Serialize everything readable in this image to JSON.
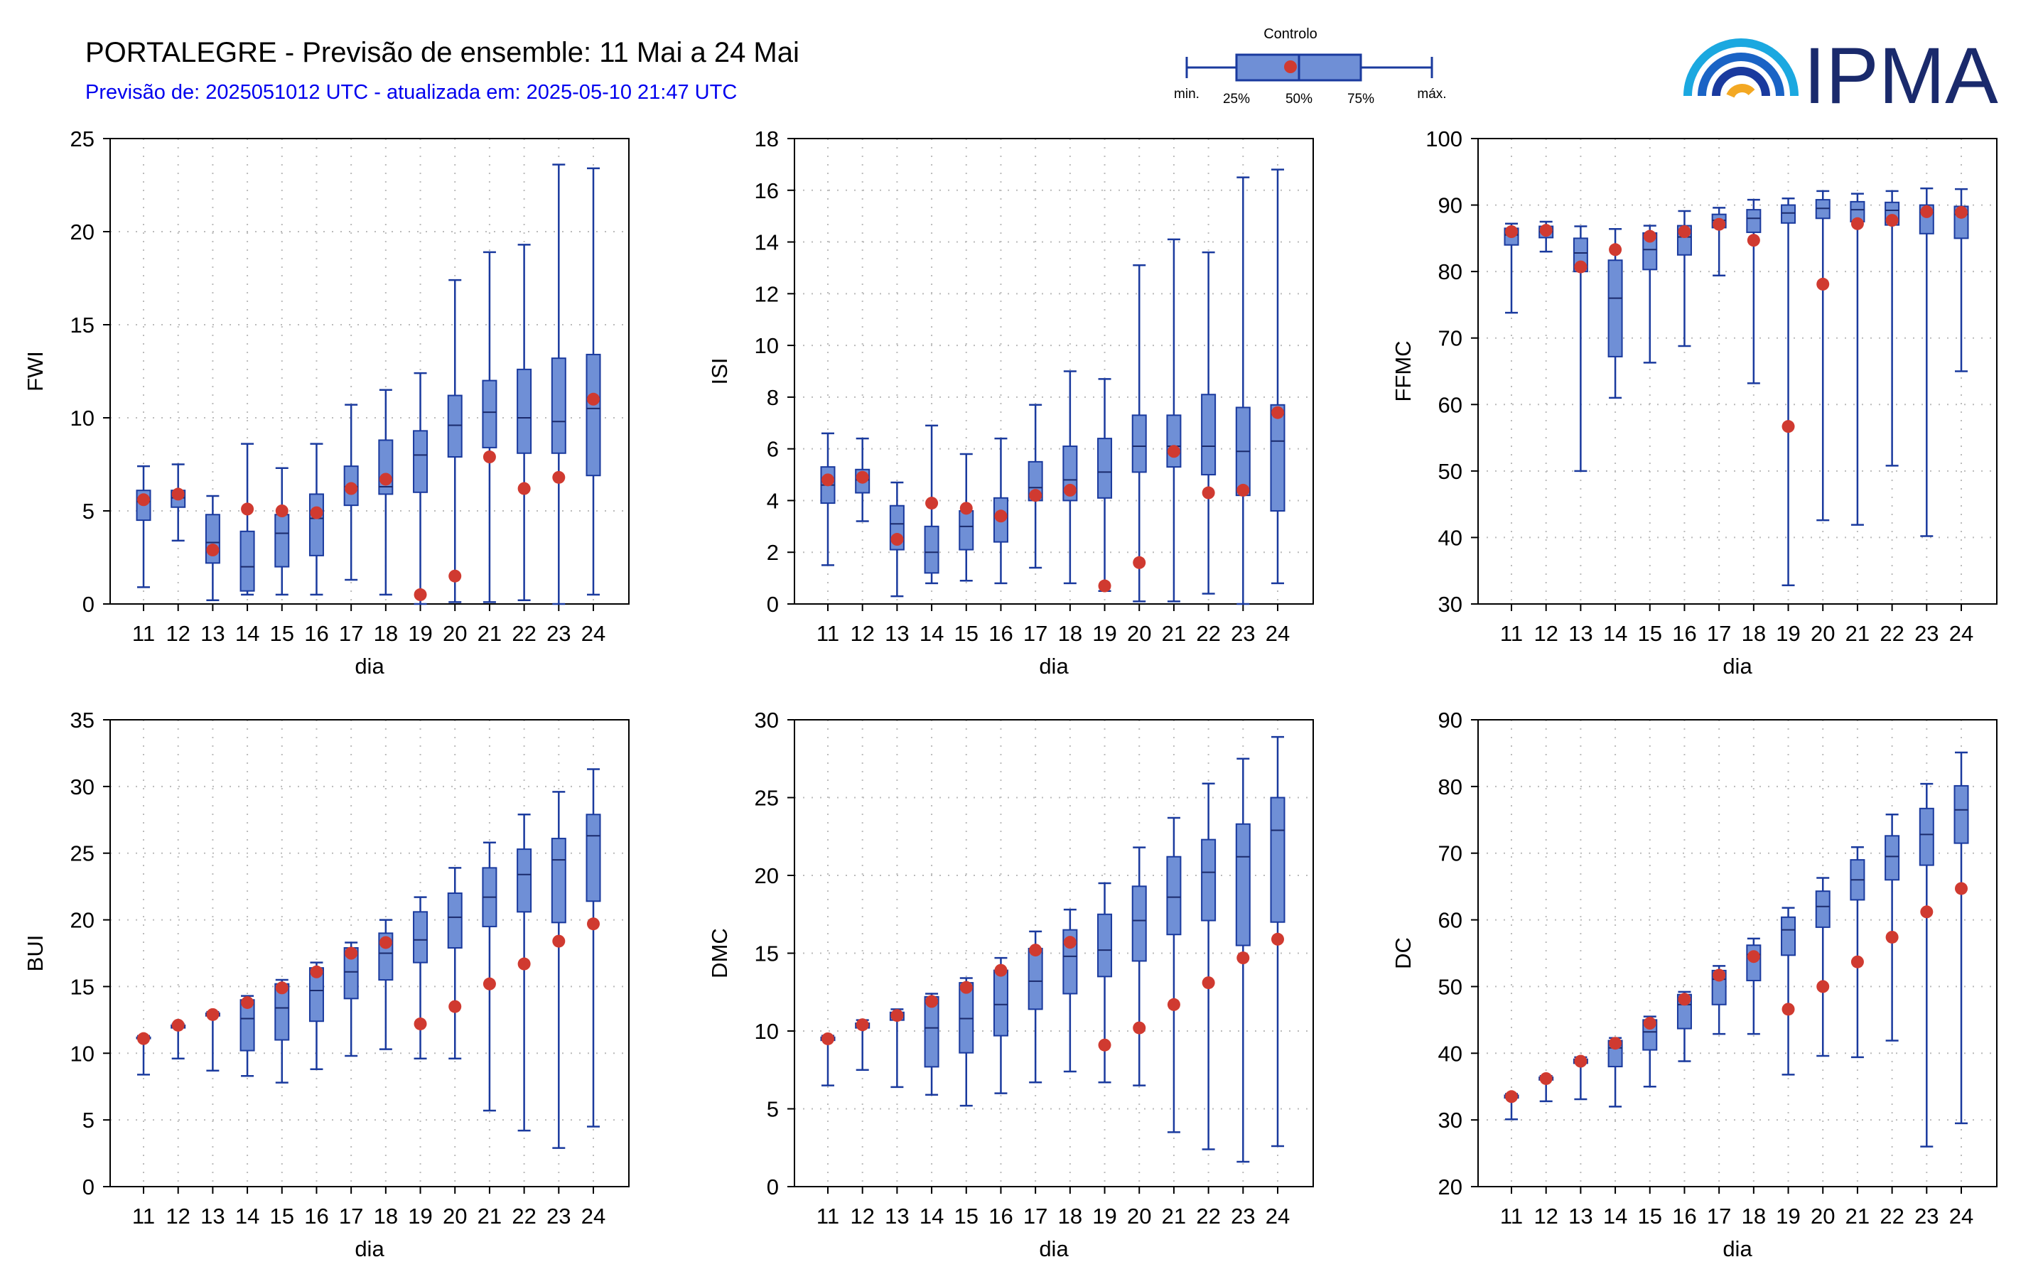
{
  "header": {
    "title": "PORTALEGRE - Previsão de ensemble: 11 Mai a 24 Mai",
    "subtitle": "Previsão de: 2025051012 UTC - atualizada em: 2025-05-10 21:47 UTC"
  },
  "legend": {
    "control": "Controlo",
    "min": "min.",
    "p25": "25%",
    "p50": "50%",
    "p75": "75%",
    "max": "máx."
  },
  "logo": {
    "text": "IPMA"
  },
  "colors": {
    "box": "#6f8fd6",
    "whisker": "#1a3a9e",
    "control": "#d03a30",
    "grid": "#bbbbbb",
    "title_sub": "#0000ee"
  },
  "chart_data": [
    {
      "type": "box",
      "ylabel": "FWI",
      "xlabel": "dia",
      "categories": [
        "11",
        "12",
        "13",
        "14",
        "15",
        "16",
        "17",
        "18",
        "19",
        "20",
        "21",
        "22",
        "23",
        "24"
      ],
      "ylim": [
        0,
        25
      ],
      "yticks": [
        0,
        5,
        10,
        15,
        20,
        25
      ],
      "grid": true,
      "series": [
        {
          "name": "min",
          "values": [
            0.9,
            3.4,
            0.2,
            0.5,
            0.5,
            0.5,
            1.3,
            0.5,
            0.0,
            0.1,
            0.1,
            0.2,
            0.0,
            0.5
          ]
        },
        {
          "name": "p25",
          "values": [
            4.5,
            5.2,
            2.2,
            0.7,
            2.0,
            2.6,
            5.3,
            5.9,
            6.0,
            7.9,
            8.4,
            8.1,
            8.1,
            6.9
          ]
        },
        {
          "name": "p50",
          "values": [
            5.5,
            5.7,
            3.3,
            2.0,
            3.8,
            4.6,
            6.3,
            6.3,
            8.0,
            9.6,
            10.3,
            10.0,
            9.8,
            10.5
          ]
        },
        {
          "name": "p75",
          "values": [
            6.1,
            6.1,
            4.8,
            3.9,
            4.8,
            5.9,
            7.4,
            8.8,
            9.3,
            11.2,
            12.0,
            12.6,
            13.2,
            13.4
          ]
        },
        {
          "name": "max",
          "values": [
            7.4,
            7.5,
            5.8,
            8.6,
            7.3,
            8.6,
            10.7,
            11.5,
            12.4,
            17.4,
            18.9,
            19.3,
            23.6,
            23.4
          ]
        },
        {
          "name": "Controlo",
          "values": [
            5.6,
            5.9,
            2.9,
            5.1,
            5.0,
            4.9,
            6.2,
            6.7,
            0.5,
            1.5,
            7.9,
            6.2,
            6.8,
            11.0
          ]
        }
      ]
    },
    {
      "type": "box",
      "ylabel": "ISI",
      "xlabel": "dia",
      "categories": [
        "11",
        "12",
        "13",
        "14",
        "15",
        "16",
        "17",
        "18",
        "19",
        "20",
        "21",
        "22",
        "23",
        "24"
      ],
      "ylim": [
        0,
        18
      ],
      "yticks": [
        0,
        2,
        4,
        6,
        8,
        10,
        12,
        14,
        16,
        18
      ],
      "grid": true,
      "series": [
        {
          "name": "min",
          "values": [
            1.5,
            3.2,
            0.3,
            0.8,
            0.9,
            0.8,
            1.4,
            0.8,
            0.5,
            0.1,
            0.1,
            0.4,
            0.0,
            0.8
          ]
        },
        {
          "name": "p25",
          "values": [
            3.9,
            4.3,
            2.1,
            1.2,
            2.1,
            2.4,
            4.0,
            4.0,
            4.1,
            5.1,
            5.3,
            5.0,
            4.2,
            3.6
          ]
        },
        {
          "name": "p50",
          "values": [
            4.6,
            4.8,
            3.1,
            2.0,
            3.0,
            3.4,
            4.5,
            4.8,
            5.1,
            6.1,
            6.1,
            6.1,
            5.9,
            6.3
          ]
        },
        {
          "name": "p75",
          "values": [
            5.3,
            5.2,
            3.8,
            3.0,
            3.6,
            4.1,
            5.5,
            6.1,
            6.4,
            7.3,
            7.3,
            8.1,
            7.6,
            7.7
          ]
        },
        {
          "name": "max",
          "values": [
            6.6,
            6.4,
            4.7,
            6.9,
            5.8,
            6.4,
            7.7,
            9.0,
            8.7,
            13.1,
            14.1,
            13.6,
            16.5,
            16.8
          ]
        },
        {
          "name": "Controlo",
          "values": [
            4.8,
            4.9,
            2.5,
            3.9,
            3.7,
            3.4,
            4.2,
            4.4,
            0.7,
            1.6,
            5.9,
            4.3,
            4.4,
            7.4
          ]
        }
      ]
    },
    {
      "type": "box",
      "ylabel": "FFMC",
      "xlabel": "dia",
      "categories": [
        "11",
        "12",
        "13",
        "14",
        "15",
        "16",
        "17",
        "18",
        "19",
        "20",
        "21",
        "22",
        "23",
        "24"
      ],
      "ylim": [
        30,
        100
      ],
      "yticks": [
        30,
        40,
        50,
        60,
        70,
        80,
        90,
        100
      ],
      "grid": true,
      "series": [
        {
          "name": "min",
          "values": [
            73.8,
            83.0,
            50.0,
            61.0,
            66.3,
            68.8,
            79.4,
            63.2,
            32.8,
            42.6,
            41.9,
            50.8,
            40.2,
            65.0
          ]
        },
        {
          "name": "p25",
          "values": [
            84.0,
            85.1,
            80.0,
            67.2,
            80.3,
            82.5,
            86.6,
            85.9,
            87.3,
            88.0,
            87.5,
            87.0,
            85.7,
            85.0
          ]
        },
        {
          "name": "p50",
          "values": [
            85.5,
            86.0,
            82.8,
            76.0,
            83.3,
            85.2,
            87.7,
            88.0,
            88.8,
            89.5,
            89.3,
            89.2,
            88.9,
            88.6
          ]
        },
        {
          "name": "p75",
          "values": [
            86.5,
            86.8,
            85.0,
            81.7,
            85.8,
            86.9,
            88.6,
            89.3,
            90.0,
            90.8,
            90.5,
            90.4,
            90.0,
            89.8
          ]
        },
        {
          "name": "max",
          "values": [
            87.2,
            87.5,
            86.8,
            86.4,
            86.9,
            89.1,
            89.6,
            90.8,
            91.0,
            92.1,
            91.7,
            92.1,
            92.5,
            92.4
          ]
        },
        {
          "name": "Controlo",
          "values": [
            86.0,
            86.2,
            80.7,
            83.3,
            85.3,
            86.0,
            87.1,
            84.7,
            56.7,
            78.1,
            87.2,
            87.7,
            89.0,
            88.9
          ]
        }
      ]
    },
    {
      "type": "box",
      "ylabel": "BUI",
      "xlabel": "dia",
      "categories": [
        "11",
        "12",
        "13",
        "14",
        "15",
        "16",
        "17",
        "18",
        "19",
        "20",
        "21",
        "22",
        "23",
        "24"
      ],
      "ylim": [
        0,
        35
      ],
      "yticks": [
        0,
        5,
        10,
        15,
        20,
        25,
        30,
        35
      ],
      "grid": true,
      "series": [
        {
          "name": "min",
          "values": [
            8.4,
            9.6,
            8.7,
            8.3,
            7.8,
            8.8,
            9.8,
            10.3,
            9.6,
            9.6,
            5.7,
            4.2,
            2.9,
            4.5
          ]
        },
        {
          "name": "p25",
          "values": [
            11.1,
            11.9,
            12.8,
            10.2,
            11.0,
            12.4,
            14.1,
            15.5,
            16.8,
            17.9,
            19.5,
            20.6,
            19.8,
            21.4
          ]
        },
        {
          "name": "p50",
          "values": [
            11.1,
            12.0,
            12.9,
            12.6,
            13.4,
            14.7,
            16.1,
            17.5,
            18.5,
            20.2,
            21.7,
            23.4,
            24.5,
            26.3
          ]
        },
        {
          "name": "p75",
          "values": [
            11.2,
            12.1,
            13.0,
            14.0,
            15.2,
            16.4,
            17.9,
            19.0,
            20.6,
            22.0,
            23.9,
            25.3,
            26.1,
            27.9
          ]
        },
        {
          "name": "max",
          "values": [
            11.3,
            12.2,
            13.1,
            14.3,
            15.5,
            16.8,
            18.3,
            20.0,
            21.7,
            23.9,
            25.8,
            27.9,
            29.6,
            31.3
          ]
        },
        {
          "name": "Controlo",
          "values": [
            11.1,
            12.1,
            12.9,
            13.8,
            14.9,
            16.1,
            17.5,
            18.3,
            12.2,
            13.5,
            15.2,
            16.7,
            18.4,
            19.7
          ]
        }
      ]
    },
    {
      "type": "box",
      "ylabel": "DMC",
      "xlabel": "dia",
      "categories": [
        "11",
        "12",
        "13",
        "14",
        "15",
        "16",
        "17",
        "18",
        "19",
        "20",
        "21",
        "22",
        "23",
        "24"
      ],
      "ylim": [
        0,
        30
      ],
      "yticks": [
        0,
        5,
        10,
        15,
        20,
        25,
        30
      ],
      "grid": true,
      "series": [
        {
          "name": "min",
          "values": [
            6.5,
            7.5,
            6.4,
            5.9,
            5.2,
            6.0,
            6.7,
            7.4,
            6.7,
            6.5,
            3.5,
            2.4,
            1.6,
            2.6
          ]
        },
        {
          "name": "p25",
          "values": [
            9.4,
            10.2,
            10.7,
            7.7,
            8.6,
            9.7,
            11.4,
            12.4,
            13.5,
            14.5,
            16.2,
            17.1,
            15.5,
            17.0
          ]
        },
        {
          "name": "p50",
          "values": [
            9.5,
            10.4,
            11.0,
            10.2,
            10.8,
            11.7,
            13.2,
            14.8,
            15.2,
            17.1,
            18.6,
            20.2,
            21.2,
            22.9
          ]
        },
        {
          "name": "p75",
          "values": [
            9.6,
            10.5,
            11.2,
            12.2,
            13.1,
            13.9,
            15.3,
            16.5,
            17.5,
            19.3,
            21.2,
            22.3,
            23.3,
            25.0
          ]
        },
        {
          "name": "max",
          "values": [
            9.7,
            10.7,
            11.4,
            12.4,
            13.4,
            14.7,
            16.4,
            17.8,
            19.5,
            21.8,
            23.7,
            25.9,
            27.5,
            28.9
          ]
        },
        {
          "name": "Controlo",
          "values": [
            9.5,
            10.4,
            11.0,
            11.9,
            12.8,
            13.9,
            15.2,
            15.7,
            9.1,
            10.2,
            11.7,
            13.1,
            14.7,
            15.9
          ]
        }
      ]
    },
    {
      "type": "box",
      "ylabel": "DC",
      "xlabel": "dia",
      "categories": [
        "11",
        "12",
        "13",
        "14",
        "15",
        "16",
        "17",
        "18",
        "19",
        "20",
        "21",
        "22",
        "23",
        "24"
      ],
      "ylim": [
        20,
        90
      ],
      "yticks": [
        20,
        30,
        40,
        50,
        60,
        70,
        80,
        90
      ],
      "grid": true,
      "series": [
        {
          "name": "min",
          "values": [
            30.1,
            32.8,
            33.1,
            32.0,
            35.0,
            38.8,
            42.9,
            42.9,
            36.8,
            39.6,
            39.4,
            41.9,
            26.0,
            29.5
          ]
        },
        {
          "name": "p25",
          "values": [
            33.3,
            36.0,
            38.5,
            38.0,
            40.5,
            43.7,
            47.3,
            50.9,
            54.7,
            58.9,
            63.0,
            66.0,
            68.2,
            71.5
          ]
        },
        {
          "name": "p50",
          "values": [
            33.5,
            36.2,
            38.8,
            40.8,
            43.2,
            47.3,
            51.1,
            54.8,
            58.5,
            62.0,
            66.0,
            69.5,
            72.8,
            76.5
          ]
        },
        {
          "name": "p75",
          "values": [
            33.7,
            36.4,
            39.1,
            41.9,
            45.0,
            48.8,
            52.4,
            56.2,
            60.4,
            64.3,
            69.0,
            72.6,
            76.7,
            80.1
          ]
        },
        {
          "name": "max",
          "values": [
            33.9,
            36.6,
            39.4,
            42.3,
            45.5,
            49.2,
            53.1,
            57.2,
            61.8,
            66.3,
            70.9,
            75.8,
            80.4,
            85.1
          ]
        },
        {
          "name": "Controlo",
          "values": [
            33.5,
            36.2,
            38.8,
            41.5,
            44.5,
            48.1,
            51.7,
            54.5,
            46.6,
            50.0,
            53.7,
            57.4,
            61.2,
            64.7
          ]
        }
      ]
    }
  ]
}
